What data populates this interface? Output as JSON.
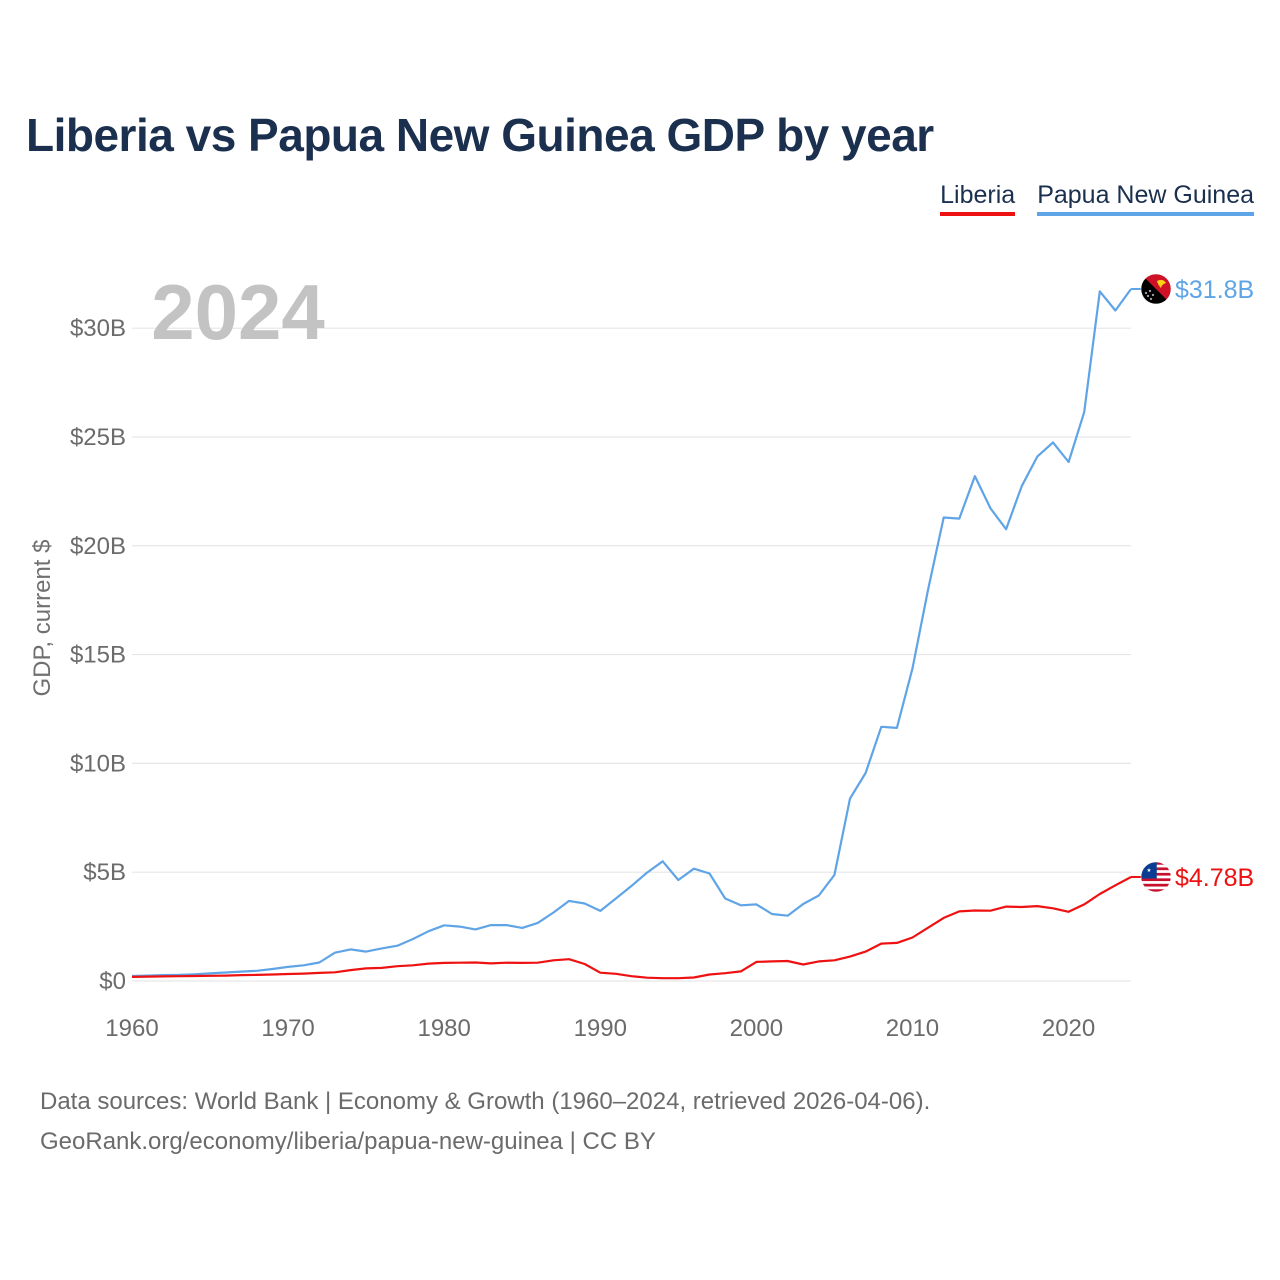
{
  "title": "Liberia vs Papua New Guinea GDP by year",
  "legend": [
    {
      "label": "Liberia",
      "color": "#ee1111"
    },
    {
      "label": "Papua New Guinea",
      "color": "#5fa4e6"
    }
  ],
  "footer": {
    "line1": "Data sources: World Bank | Economy & Growth (1960–2024, retrieved 2026-04-06).",
    "line2": "GeoRank.org/economy/liberia/papua-new-guinea | CC BY"
  },
  "chart_data": {
    "type": "line",
    "title": "Liberia vs Papua New Guinea GDP by year",
    "xlabel": "",
    "ylabel": "GDP, current $",
    "year_label": "2024",
    "xlim": [
      1960,
      2024
    ],
    "ylim": [
      0,
      32
    ],
    "x_ticks": [
      1960,
      1970,
      1980,
      1990,
      2000,
      2010,
      2020
    ],
    "y_ticks": [
      {
        "value": 0,
        "label": "$0"
      },
      {
        "value": 5,
        "label": "$5B"
      },
      {
        "value": 10,
        "label": "$10B"
      },
      {
        "value": 15,
        "label": "$15B"
      },
      {
        "value": 20,
        "label": "$20B"
      },
      {
        "value": 25,
        "label": "$25B"
      },
      {
        "value": 30,
        "label": "$30B"
      }
    ],
    "grid": true,
    "series": [
      {
        "name": "Papua New Guinea",
        "color": "#5fa4e6",
        "end_label": "$31.8B",
        "flag": "papua-new-guinea-flag-icon",
        "x": [
          1960,
          1961,
          1962,
          1963,
          1964,
          1965,
          1966,
          1967,
          1968,
          1969,
          1970,
          1971,
          1972,
          1973,
          1974,
          1975,
          1976,
          1977,
          1978,
          1979,
          1980,
          1981,
          1982,
          1983,
          1984,
          1985,
          1986,
          1987,
          1988,
          1989,
          1990,
          1991,
          1992,
          1993,
          1994,
          1995,
          1996,
          1997,
          1998,
          1999,
          2000,
          2001,
          2002,
          2003,
          2004,
          2005,
          2006,
          2007,
          2008,
          2009,
          2010,
          2011,
          2012,
          2013,
          2014,
          2015,
          2016,
          2017,
          2018,
          2019,
          2020,
          2021,
          2022,
          2023,
          2024
        ],
        "values": [
          0.23,
          0.25,
          0.27,
          0.28,
          0.31,
          0.35,
          0.39,
          0.43,
          0.47,
          0.55,
          0.65,
          0.72,
          0.85,
          1.3,
          1.45,
          1.35,
          1.5,
          1.62,
          1.93,
          2.29,
          2.56,
          2.5,
          2.37,
          2.57,
          2.57,
          2.44,
          2.67,
          3.15,
          3.68,
          3.56,
          3.22,
          3.79,
          4.37,
          4.98,
          5.5,
          4.64,
          5.16,
          4.94,
          3.79,
          3.48,
          3.52,
          3.08,
          3.0,
          3.54,
          3.93,
          4.87,
          8.38,
          9.56,
          11.68,
          11.63,
          14.37,
          17.99,
          21.3,
          21.25,
          23.2,
          21.72,
          20.76,
          22.74,
          24.1,
          24.75,
          23.85,
          26.14,
          31.69,
          30.81,
          31.8
        ]
      },
      {
        "name": "Liberia",
        "color": "#ee1111",
        "end_label": "$4.78B",
        "flag": "liberia-flag-icon",
        "x": [
          1960,
          1961,
          1962,
          1963,
          1964,
          1965,
          1966,
          1967,
          1968,
          1969,
          1970,
          1971,
          1972,
          1973,
          1974,
          1975,
          1976,
          1977,
          1978,
          1979,
          1980,
          1981,
          1982,
          1983,
          1984,
          1985,
          1986,
          1987,
          1988,
          1989,
          1990,
          1991,
          1992,
          1993,
          1994,
          1995,
          1996,
          1997,
          1998,
          1999,
          2000,
          2001,
          2002,
          2003,
          2004,
          2005,
          2006,
          2007,
          2008,
          2009,
          2010,
          2011,
          2012,
          2013,
          2014,
          2015,
          2016,
          2017,
          2018,
          2019,
          2020,
          2021,
          2022,
          2023,
          2024
        ],
        "values": [
          0.19,
          0.2,
          0.21,
          0.22,
          0.23,
          0.24,
          0.25,
          0.27,
          0.28,
          0.3,
          0.32,
          0.34,
          0.37,
          0.4,
          0.5,
          0.58,
          0.6,
          0.68,
          0.72,
          0.8,
          0.83,
          0.84,
          0.85,
          0.81,
          0.84,
          0.83,
          0.84,
          0.95,
          1.0,
          0.78,
          0.38,
          0.33,
          0.22,
          0.15,
          0.13,
          0.13,
          0.16,
          0.3,
          0.36,
          0.44,
          0.88,
          0.9,
          0.92,
          0.76,
          0.9,
          0.95,
          1.12,
          1.35,
          1.72,
          1.75,
          2.0,
          2.45,
          2.9,
          3.2,
          3.24,
          3.23,
          3.42,
          3.4,
          3.44,
          3.34,
          3.18,
          3.52,
          4.0,
          4.4,
          4.78
        ]
      }
    ]
  }
}
